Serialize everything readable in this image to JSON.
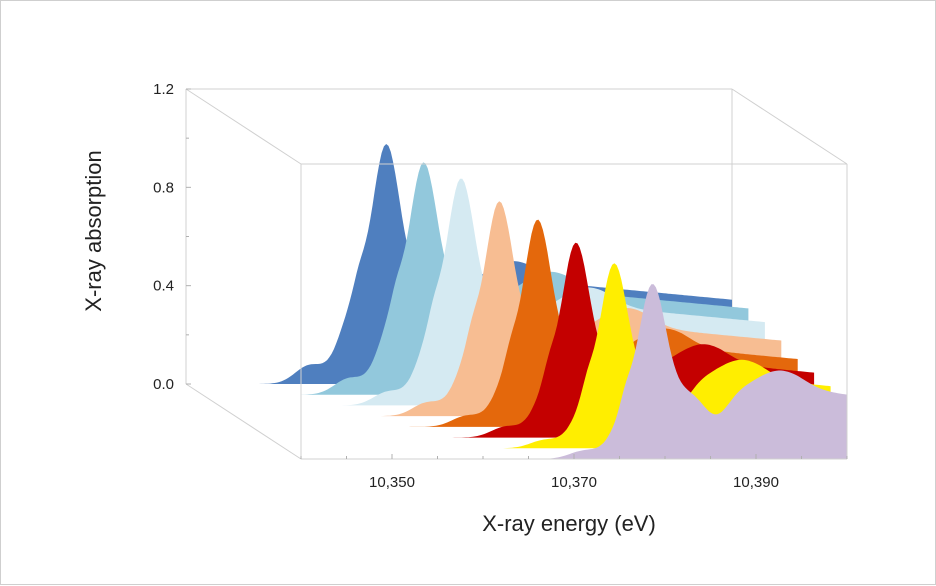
{
  "chart_data": {
    "type": "area",
    "style": "3d-waterfall",
    "xlabel": "X-ray energy (eV)",
    "ylabel": "X-ray absorption",
    "xlim": [
      10340,
      10400
    ],
    "ylim": [
      0,
      1.2
    ],
    "x_ticks": [
      10350,
      10370,
      10390
    ],
    "x_tick_labels": [
      "10,350",
      "10,370",
      "10,390"
    ],
    "y_ticks": [
      0,
      0.4,
      0.8,
      1.2
    ],
    "y_tick_labels": [
      "0.0",
      "0.4",
      "0.8",
      "1.2"
    ],
    "grid": false,
    "legend": "none",
    "series": [
      {
        "color": "#4f7fbf",
        "edge_eV": 10357.0,
        "peak_eV": 10362.0,
        "peak_abs": 0.98,
        "post_abs": 0.42,
        "pre_abs": 0.07
      },
      {
        "color": "#92c8dc",
        "edge_eV": 10359.5,
        "peak_eV": 10364.3,
        "peak_abs": 0.95,
        "post_abs": 0.42,
        "pre_abs": 0.06
      },
      {
        "color": "#d5eaf2",
        "edge_eV": 10362.0,
        "peak_eV": 10366.6,
        "peak_abs": 0.93,
        "post_abs": 0.4,
        "pre_abs": 0.05
      },
      {
        "color": "#f7bd92",
        "edge_eV": 10364.5,
        "peak_eV": 10369.0,
        "peak_abs": 0.88,
        "post_abs": 0.36,
        "pre_abs": 0.05
      },
      {
        "color": "#e4680c",
        "edge_eV": 10367.0,
        "peak_eV": 10371.4,
        "peak_abs": 0.85,
        "post_abs": 0.32,
        "pre_abs": 0.04
      },
      {
        "color": "#c40000",
        "edge_eV": 10369.5,
        "peak_eV": 10373.8,
        "peak_abs": 0.8,
        "post_abs": 0.3,
        "pre_abs": 0.04
      },
      {
        "color": "#ffee00",
        "edge_eV": 10372.0,
        "peak_eV": 10376.2,
        "peak_abs": 0.76,
        "post_abs": 0.28,
        "pre_abs": 0.03
      },
      {
        "color": "#cbbcda",
        "edge_eV": 10374.5,
        "peak_eV": 10378.6,
        "peak_abs": 0.72,
        "post_abs": 0.28,
        "pre_abs": 0.03
      }
    ]
  }
}
